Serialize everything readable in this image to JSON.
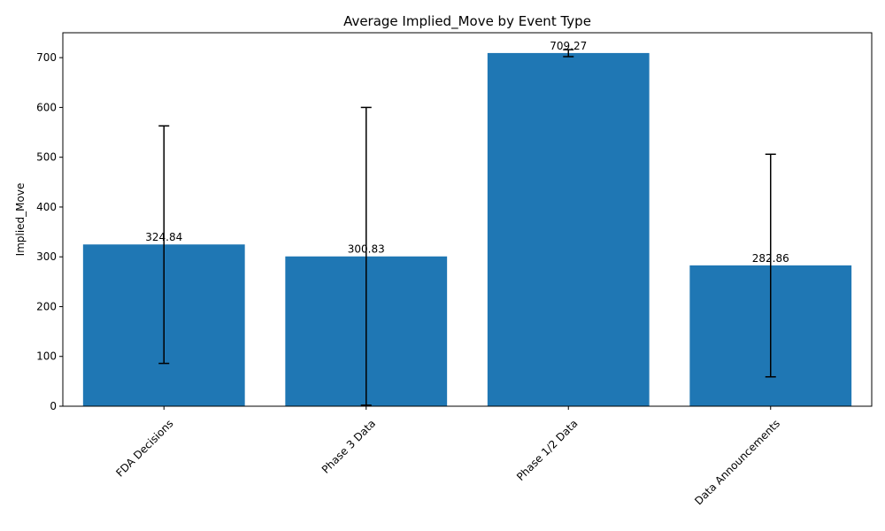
{
  "chart_data": {
    "type": "bar",
    "title": "Average Implied_Move by Event Type",
    "xlabel": "",
    "ylabel": "Implied_Move",
    "categories": [
      "FDA Decisions",
      "Phase 3 Data",
      "Phase 1/2 Data",
      "Data Announcements"
    ],
    "values": [
      324.84,
      300.83,
      709.27,
      282.86
    ],
    "value_labels": [
      "324.84",
      "300.83",
      "709.27",
      "282.86"
    ],
    "error_low": [
      86,
      2,
      702,
      59
    ],
    "error_high": [
      563,
      600,
      716,
      506
    ],
    "ylim": [
      0,
      750
    ],
    "yticks": [
      0,
      100,
      200,
      300,
      400,
      500,
      600,
      700
    ],
    "ytick_labels": [
      "0",
      "100",
      "200",
      "300",
      "400",
      "500",
      "600",
      "700"
    ],
    "bar_color": "#1f77b4",
    "grid": false,
    "legend": "none"
  }
}
